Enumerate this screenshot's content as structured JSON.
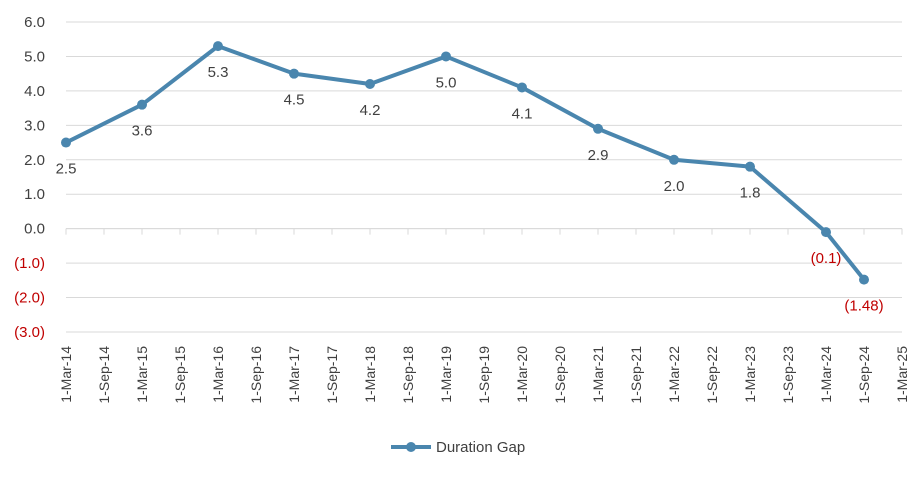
{
  "chart_data": {
    "type": "line",
    "x_categories": [
      "1-Mar-14",
      "1-Sep-14",
      "1-Mar-15",
      "1-Sep-15",
      "1-Mar-16",
      "1-Sep-16",
      "1-Mar-17",
      "1-Sep-17",
      "1-Mar-18",
      "1-Sep-18",
      "1-Mar-19",
      "1-Sep-19",
      "1-Mar-20",
      "1-Sep-20",
      "1-Mar-21",
      "1-Sep-21",
      "1-Mar-22",
      "1-Sep-22",
      "1-Mar-23",
      "1-Sep-23",
      "1-Mar-24",
      "1-Sep-24",
      "1-Mar-25"
    ],
    "y_ticks": [
      "6.0",
      "5.0",
      "4.0",
      "3.0",
      "2.0",
      "1.0",
      "0.0",
      "(1.0)",
      "(2.0)",
      "(3.0)"
    ],
    "ylim": [
      -3,
      6
    ],
    "grid": true,
    "legend_position": "bottom",
    "series": [
      {
        "name": "Duration Gap",
        "color": "#4a86ae",
        "x": [
          "1-Mar-14",
          "1-Mar-15",
          "1-Mar-16",
          "1-Mar-17",
          "1-Mar-18",
          "1-Mar-19",
          "1-Mar-20",
          "1-Mar-21",
          "1-Mar-22",
          "1-Mar-23",
          "1-Mar-24",
          "1-Sep-24"
        ],
        "values": [
          2.5,
          3.6,
          5.3,
          4.5,
          4.2,
          5.0,
          4.1,
          2.9,
          2.0,
          1.8,
          -0.1,
          -1.48
        ],
        "labels": [
          "2.5",
          "3.6",
          "5.3",
          "4.5",
          "4.2",
          "5.0",
          "4.1",
          "2.9",
          "2.0",
          "1.8",
          "(0.1)",
          "(1.48)"
        ]
      }
    ],
    "colors": {
      "positive": "#404040",
      "negative": "#c00000",
      "grid": "#d9d9d9"
    }
  }
}
